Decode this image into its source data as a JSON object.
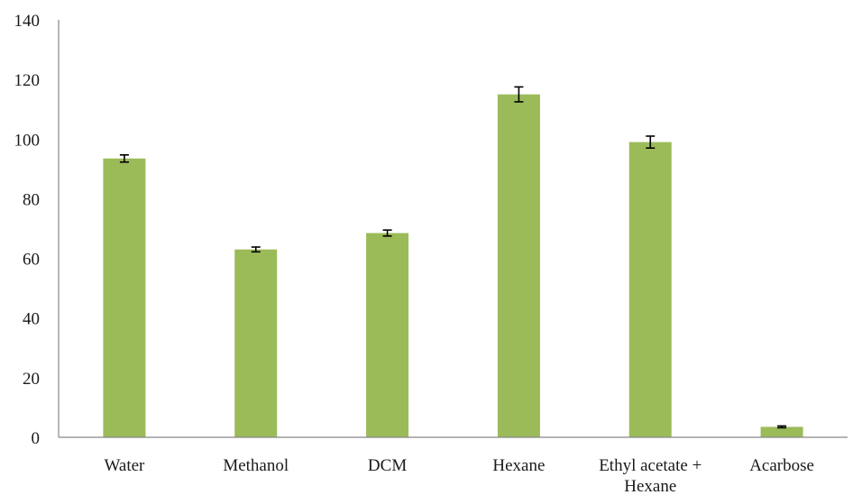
{
  "chart_data": {
    "type": "bar",
    "title": "",
    "xlabel": "",
    "ylabel": "",
    "categories": [
      [
        "Water"
      ],
      [
        "Methanol"
      ],
      [
        "DCM"
      ],
      [
        "Hexane"
      ],
      [
        "Ethyl acetate +",
        "Hexane"
      ],
      [
        "Acarbose"
      ]
    ],
    "values": [
      93.5,
      63.0,
      68.5,
      115.0,
      99.0,
      3.5
    ],
    "errors": [
      1.2,
      0.8,
      1.0,
      2.5,
      2.0,
      0.3
    ],
    "ylim": [
      0,
      140
    ],
    "yticks": [
      0,
      20,
      40,
      60,
      80,
      100,
      120,
      140
    ],
    "grid": false,
    "legend": "none",
    "bar_color": "#9bbb59",
    "axis_color": "#868686",
    "error_bar_color": "#000000"
  }
}
